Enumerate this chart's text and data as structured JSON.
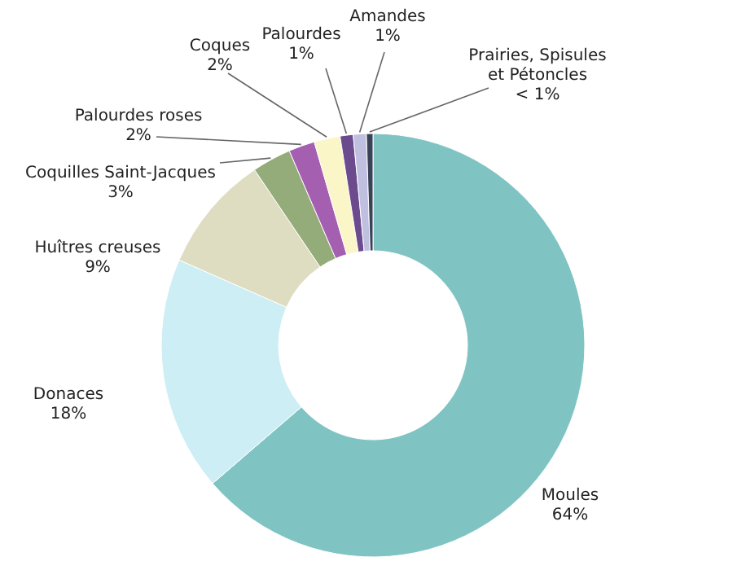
{
  "chart_data": {
    "type": "donut",
    "categories": [
      "Moules",
      "Donaces",
      "Huîtres creuses",
      "Coquilles Saint-Jacques",
      "Palourdes roses",
      "Coques",
      "Palourdes",
      "Amandes",
      "Prairies, Spisules et Pétoncles"
    ],
    "values": [
      64,
      18,
      9,
      3,
      2,
      2,
      1,
      1,
      0.5
    ],
    "value_labels": [
      "64%",
      "18%",
      "9%",
      "3%",
      "2%",
      "2%",
      "1%",
      "1%",
      "< 1%"
    ],
    "colors": [
      "#7fc4c2",
      "#cdeef5",
      "#deddc2",
      "#94ab7a",
      "#a45fb0",
      "#fbf6c8",
      "#6b4a8e",
      "#bfc0e0",
      "#3a4258"
    ]
  }
}
